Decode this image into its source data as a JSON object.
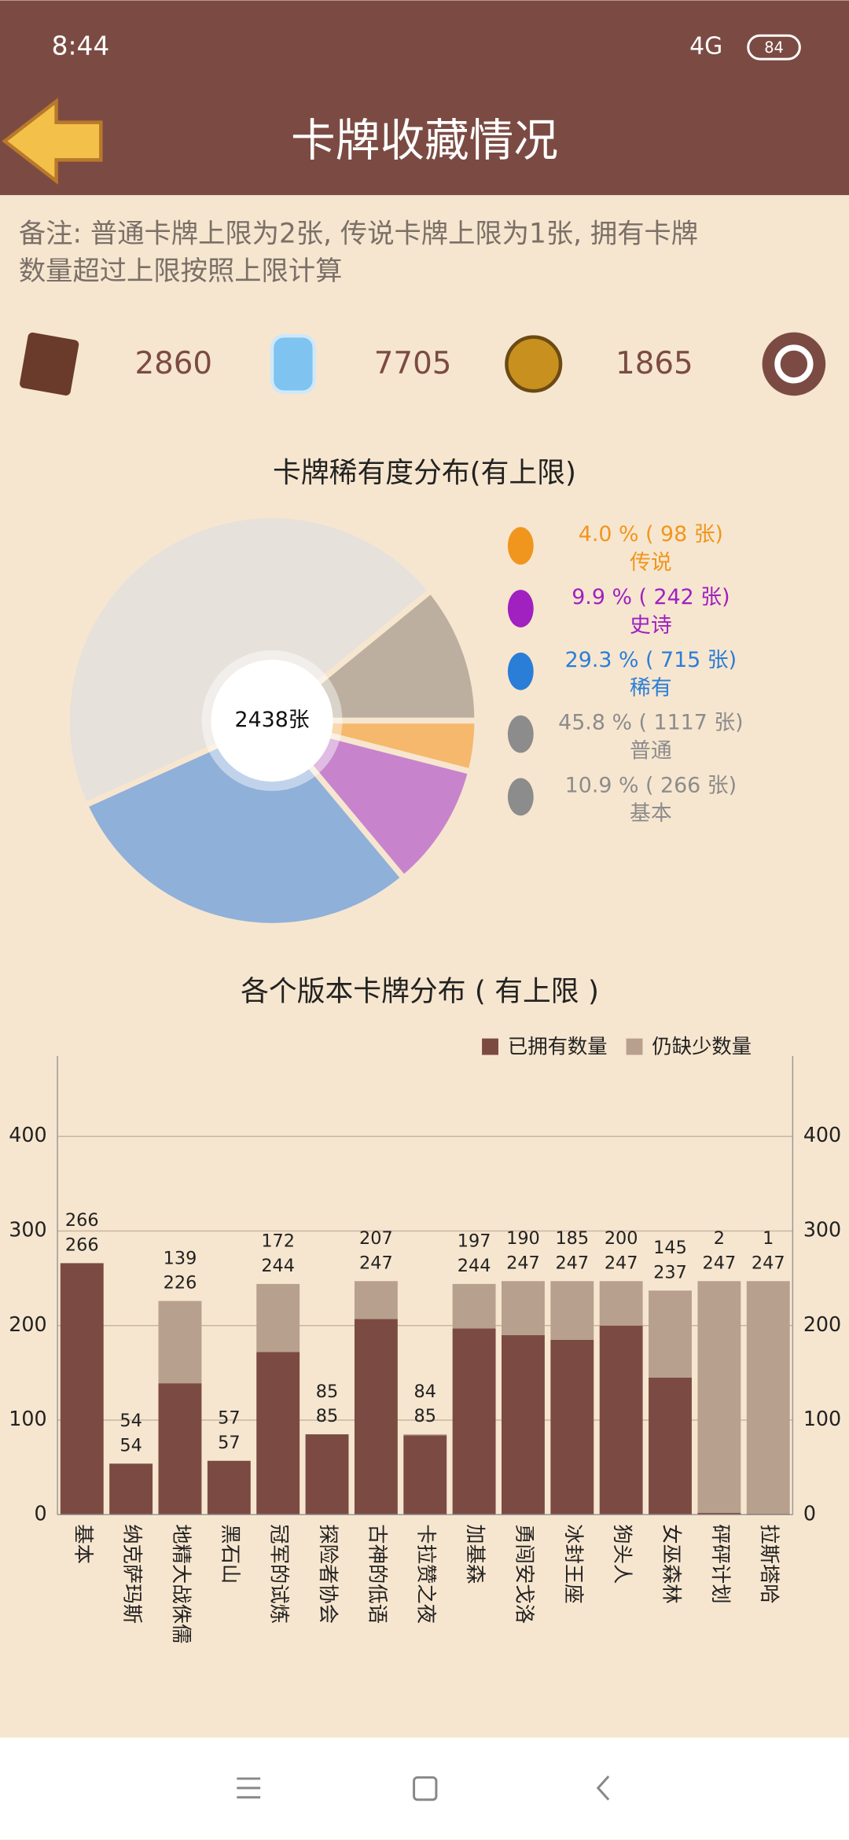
{
  "status_bar": {
    "time": "8:44",
    "network": "4G",
    "battery": "84"
  },
  "header": {
    "title": "卡牌收藏情况"
  },
  "note": {
    "lines": [
      "备注: 普通卡牌上限为2张, 传说卡牌上限为1张, 拥有卡牌",
      "数量超过上限按照上限计算"
    ]
  },
  "stats": [
    2860,
    7705,
    1865
  ],
  "chart_data": [
    {
      "type": "pie",
      "title": "卡牌稀有度分布(有上限)",
      "center_label": "2438张",
      "categories": [
        "传说",
        "史诗",
        "稀有",
        "普通",
        "基本"
      ],
      "values": [
        4.0,
        9.9,
        29.3,
        45.8,
        10.9
      ],
      "value_labels": [
        "4.0 % ( 98 张)",
        "9.9 % ( 242 张)",
        "29.3 % ( 715 张)",
        "45.8 % ( 1117 张)",
        "10.9 % ( 266 张)"
      ],
      "colors": [
        "#f5b86c",
        "#c784cd",
        "#8fb0d9",
        "#e6e1da",
        "#bcaf9f"
      ],
      "label_colors": [
        "#f0961e",
        "#a020c0",
        "#2a7ed8",
        "#8c8c8c",
        "#8c8c8c"
      ]
    },
    {
      "type": "bar",
      "stacked": true,
      "title": "各个版本卡牌分布 ( 有上限 )",
      "categories": [
        "基本",
        "纳克萨玛斯",
        "地精大战侏儒",
        "黑石山",
        "冠军的试炼",
        "探险者协会",
        "古神的低语",
        "卡拉赞之夜",
        "加基森",
        "勇闯安戈洛",
        "冰封王座",
        "狗头人",
        "女巫森林",
        "砰砰计划",
        "拉斯塔哈"
      ],
      "series": [
        {
          "name": "已拥有数量",
          "color": "#7b4b43",
          "values": [
            266,
            54,
            139,
            57,
            172,
            85,
            207,
            84,
            197,
            190,
            185,
            200,
            145,
            2,
            1
          ]
        },
        {
          "name": "仍缺少数量",
          "color": "#b7a08e",
          "values": [
            0,
            0,
            87,
            0,
            72,
            0,
            40,
            1,
            47,
            57,
            62,
            47,
            92,
            245,
            246
          ]
        }
      ],
      "total_labels": [
        266,
        54,
        226,
        57,
        244,
        85,
        247,
        85,
        244,
        247,
        247,
        247,
        237,
        247,
        247
      ],
      "ylim": [
        0,
        485
      ],
      "yticks": [
        0,
        100,
        200,
        300,
        400
      ],
      "y2lim": [
        0,
        485
      ],
      "y2ticks": [
        0,
        100,
        200,
        300,
        400
      ],
      "grid": true,
      "legend": "top-right"
    }
  ]
}
